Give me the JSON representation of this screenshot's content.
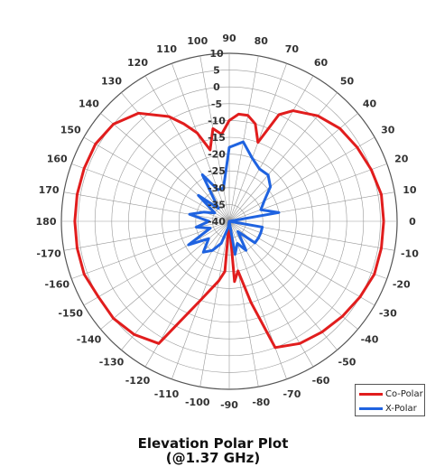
{
  "colors": {
    "co_polar": "#e11d1d",
    "x_polar": "#1f63e0",
    "grid": "#999999"
  },
  "legend": {
    "co_polar_label": "Co-Polar",
    "x_polar_label": "X-Polar"
  },
  "title": {
    "line1": "Elevation Polar Plot",
    "line2": "(@1.37 GHz)"
  },
  "chart_data": {
    "type": "polar-line",
    "radial_axis": {
      "labels": [
        "10",
        "5",
        "0",
        "-5",
        "-10",
        "-15",
        "-20",
        "-25",
        "-30",
        "-35",
        "-40"
      ],
      "range": [
        -40,
        10
      ],
      "step": 5
    },
    "angular_axis": {
      "step_deg": 10,
      "labels": {
        "0": "0",
        "10": "10",
        "20": "20",
        "30": "30",
        "40": "40",
        "50": "50",
        "60": "60",
        "70": "70",
        "80": "80",
        "90": "90",
        "100": "100",
        "110": "110",
        "120": "120",
        "130": "130",
        "140": "140",
        "150": "150",
        "160": "160",
        "170": "170",
        "180": "180",
        "-10": "-10",
        "-20": "-20",
        "-30": "-30",
        "-40": "-40",
        "-50": "-50",
        "-60": "-60",
        "-70": "-70",
        "-80": "-80",
        "-90": "-90",
        "-100": "-100",
        "-110": "-110",
        "-120": "-120",
        "-130": "-130",
        "-140": "-140",
        "-150": "-150",
        "-160": "-160",
        "-170": "-170"
      }
    },
    "grid": true,
    "legend_position": "bottom-right",
    "series": [
      {
        "name": "Co-Polar",
        "theta": [
          0,
          10,
          20,
          30,
          40,
          50,
          60,
          65,
          70,
          75,
          80,
          85,
          90,
          95,
          100,
          105,
          110,
          115,
          120,
          130,
          140,
          150,
          160,
          170,
          180,
          -170,
          -160,
          -150,
          -140,
          -130,
          -120,
          -110,
          -100,
          -95,
          -90,
          -85,
          -80,
          -75,
          -70,
          -60,
          -50,
          -40,
          -30,
          -20,
          -10,
          0
        ],
        "r": [
          6,
          6,
          5,
          4,
          3,
          1,
          -2,
          -5,
          -15,
          -10,
          -8,
          -8,
          -10,
          -14,
          -12,
          -18,
          -12,
          -8,
          -4,
          2,
          5,
          6,
          6,
          6,
          6,
          6,
          6,
          5,
          5,
          4,
          2,
          -15,
          -22,
          -25,
          -40,
          -22,
          -25,
          -15,
          0,
          2,
          3,
          4,
          5,
          6,
          6,
          6
        ]
      },
      {
        "name": "X-Polar",
        "theta": [
          0,
          10,
          20,
          30,
          40,
          50,
          60,
          70,
          80,
          90,
          100,
          110,
          120,
          130,
          140,
          150,
          160,
          170,
          180,
          -170,
          -160,
          -150,
          -140,
          -130,
          -120,
          -110,
          -100,
          -90,
          -80,
          -70,
          -60,
          -50,
          -40,
          -30,
          -20,
          -10,
          0
        ],
        "r": [
          -40,
          -25,
          -30,
          -28,
          -24,
          -22,
          -22,
          -20,
          -16,
          -18,
          -30,
          -30,
          -24,
          -35,
          -28,
          -35,
          -32,
          -28,
          -34,
          -30,
          -34,
          -26,
          -32,
          -28,
          -30,
          -33,
          -38,
          -40,
          -30,
          -33,
          -30,
          -36,
          -30,
          -30,
          -30,
          -30,
          -40
        ]
      }
    ]
  }
}
